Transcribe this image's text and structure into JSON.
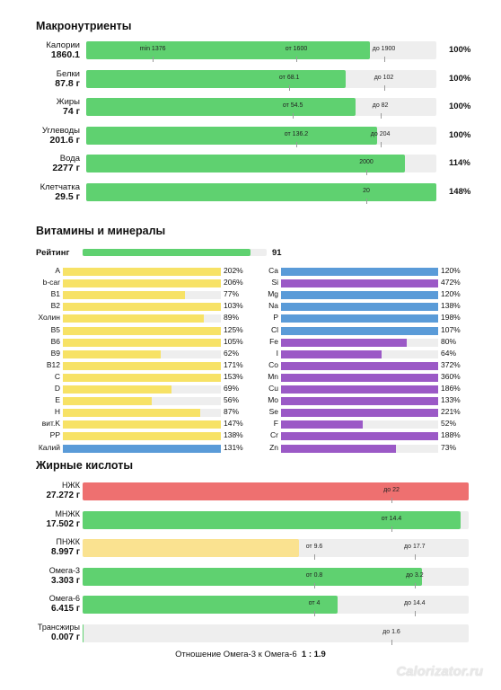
{
  "colors": {
    "green": "#5fd170",
    "yellow": "#f7e266",
    "blue": "#5a9bd8",
    "purple": "#9b59c6",
    "red": "#ee7070",
    "pale_yellow": "#fae290",
    "track": "#eeeeee"
  },
  "sections": {
    "macro": "Макронутриенты",
    "vitamins": "Витамины и минералы",
    "fats": "Жирные кислоты"
  },
  "macros": [
    {
      "name": "Калории",
      "amount": "1860.1",
      "percent": "100%",
      "fill": 0.81,
      "ticks": [
        {
          "label": "min 1376",
          "at": 0.19
        },
        {
          "label": "от 1600",
          "at": 0.6
        },
        {
          "label": "до 1900",
          "at": 0.85
        }
      ]
    },
    {
      "name": "Белки",
      "amount": "87.8 г",
      "percent": "100%",
      "fill": 0.74,
      "ticks": [
        {
          "label": "от 68.1",
          "at": 0.58
        },
        {
          "label": "до 102",
          "at": 0.85
        }
      ]
    },
    {
      "name": "Жиры",
      "amount": "74 г",
      "percent": "100%",
      "fill": 0.77,
      "ticks": [
        {
          "label": "от 54.5",
          "at": 0.59
        },
        {
          "label": "до 82",
          "at": 0.84
        }
      ]
    },
    {
      "name": "Углеводы",
      "amount": "201.6 г",
      "percent": "100%",
      "fill": 0.83,
      "ticks": [
        {
          "label": "от 136.2",
          "at": 0.6
        },
        {
          "label": "до 204",
          "at": 0.84
        }
      ]
    },
    {
      "name": "Вода",
      "amount": "2277 г",
      "percent": "114%",
      "fill": 0.91,
      "ticks": [
        {
          "label": "2000",
          "at": 0.8
        }
      ]
    },
    {
      "name": "Клетчатка",
      "amount": "29.5 г",
      "percent": "148%",
      "fill": 1.0,
      "ticks": [
        {
          "label": "20",
          "at": 0.8
        }
      ]
    }
  ],
  "rating": {
    "label": "Рейтинг",
    "value": "91",
    "fill": 0.91
  },
  "vitamins_left": [
    {
      "name": "A",
      "percent": "202%",
      "value": 202,
      "color": "yellow"
    },
    {
      "name": "b-car",
      "percent": "206%",
      "value": 206,
      "color": "yellow"
    },
    {
      "name": "B1",
      "percent": "77%",
      "value": 77,
      "color": "yellow"
    },
    {
      "name": "B2",
      "percent": "103%",
      "value": 103,
      "color": "yellow"
    },
    {
      "name": "Холин",
      "percent": "89%",
      "value": 89,
      "color": "yellow"
    },
    {
      "name": "B5",
      "percent": "125%",
      "value": 125,
      "color": "yellow"
    },
    {
      "name": "B6",
      "percent": "105%",
      "value": 105,
      "color": "yellow"
    },
    {
      "name": "B9",
      "percent": "62%",
      "value": 62,
      "color": "yellow"
    },
    {
      "name": "B12",
      "percent": "171%",
      "value": 171,
      "color": "yellow"
    },
    {
      "name": "C",
      "percent": "153%",
      "value": 153,
      "color": "yellow"
    },
    {
      "name": "D",
      "percent": "69%",
      "value": 69,
      "color": "yellow"
    },
    {
      "name": "E",
      "percent": "56%",
      "value": 56,
      "color": "yellow"
    },
    {
      "name": "H",
      "percent": "87%",
      "value": 87,
      "color": "yellow"
    },
    {
      "name": "вит.K",
      "percent": "147%",
      "value": 147,
      "color": "yellow"
    },
    {
      "name": "PP",
      "percent": "138%",
      "value": 138,
      "color": "yellow"
    },
    {
      "name": "Калий",
      "percent": "131%",
      "value": 131,
      "color": "blue"
    }
  ],
  "minerals_right": [
    {
      "name": "Ca",
      "percent": "120%",
      "value": 120,
      "color": "blue"
    },
    {
      "name": "Si",
      "percent": "472%",
      "value": 472,
      "color": "purple"
    },
    {
      "name": "Mg",
      "percent": "120%",
      "value": 120,
      "color": "blue"
    },
    {
      "name": "Na",
      "percent": "138%",
      "value": 138,
      "color": "blue"
    },
    {
      "name": "P",
      "percent": "198%",
      "value": 198,
      "color": "blue"
    },
    {
      "name": "Cl",
      "percent": "107%",
      "value": 107,
      "color": "blue"
    },
    {
      "name": "Fe",
      "percent": "80%",
      "value": 80,
      "color": "purple"
    },
    {
      "name": "I",
      "percent": "64%",
      "value": 64,
      "color": "purple"
    },
    {
      "name": "Co",
      "percent": "372%",
      "value": 372,
      "color": "purple"
    },
    {
      "name": "Mn",
      "percent": "360%",
      "value": 360,
      "color": "purple"
    },
    {
      "name": "Cu",
      "percent": "186%",
      "value": 186,
      "color": "purple"
    },
    {
      "name": "Mo",
      "percent": "133%",
      "value": 133,
      "color": "purple"
    },
    {
      "name": "Se",
      "percent": "221%",
      "value": 221,
      "color": "purple"
    },
    {
      "name": "F",
      "percent": "52%",
      "value": 52,
      "color": "purple"
    },
    {
      "name": "Cr",
      "percent": "188%",
      "value": 188,
      "color": "purple"
    },
    {
      "name": "Zn",
      "percent": "73%",
      "value": 73,
      "color": "purple"
    }
  ],
  "fats": [
    {
      "name": "НЖК",
      "amount": "27.272 г",
      "color": "red",
      "fill": 1.0,
      "ticks": [
        {
          "label": "до 22",
          "at": 0.8
        }
      ]
    },
    {
      "name": "МНЖК",
      "amount": "17.502 г",
      "color": "green",
      "fill": 0.98,
      "ticks": [
        {
          "label": "от 14.4",
          "at": 0.8
        }
      ]
    },
    {
      "name": "ПНЖК",
      "amount": "8.997 г",
      "color": "pale_yellow",
      "fill": 0.56,
      "ticks": [
        {
          "label": "от 9.6",
          "at": 0.6
        },
        {
          "label": "до 17.7",
          "at": 0.86
        }
      ]
    },
    {
      "name": "Омега-3",
      "amount": "3.303 г",
      "color": "green",
      "fill": 0.88,
      "ticks": [
        {
          "label": "от 0.8",
          "at": 0.6
        },
        {
          "label": "до 3.2",
          "at": 0.86
        }
      ]
    },
    {
      "name": "Омега-6",
      "amount": "6.415 г",
      "color": "green",
      "fill": 0.66,
      "ticks": [
        {
          "label": "от 4",
          "at": 0.6
        },
        {
          "label": "до 14.4",
          "at": 0.86
        }
      ]
    },
    {
      "name": "Трансжиры",
      "amount": "0.007 г",
      "color": "green",
      "fill": 0.003,
      "ticks": [
        {
          "label": "до 1.6",
          "at": 0.8
        }
      ]
    }
  ],
  "ratio": {
    "label": "Отношение Омега-3 к Омега-6",
    "value": "1 : 1.9"
  },
  "watermark": "Calorizator.ru",
  "chart_data": [
    {
      "type": "bar",
      "title": "Макронутриенты",
      "categories": [
        "Калории",
        "Белки",
        "Жиры",
        "Углеводы",
        "Вода",
        "Клетчатка"
      ],
      "values": [
        1860.1,
        87.8,
        74,
        201.6,
        2277,
        29.5
      ],
      "percent_of_norm": [
        100,
        100,
        100,
        100,
        114,
        148
      ]
    },
    {
      "type": "bar",
      "title": "Витамины и минералы",
      "categories": [
        "A",
        "b-car",
        "B1",
        "B2",
        "Холин",
        "B5",
        "B6",
        "B9",
        "B12",
        "C",
        "D",
        "E",
        "H",
        "вит.K",
        "PP",
        "Калий",
        "Ca",
        "Si",
        "Mg",
        "Na",
        "P",
        "Cl",
        "Fe",
        "I",
        "Co",
        "Mn",
        "Cu",
        "Mo",
        "Se",
        "F",
        "Cr",
        "Zn"
      ],
      "values": [
        202,
        206,
        77,
        103,
        89,
        125,
        105,
        62,
        171,
        153,
        69,
        56,
        87,
        147,
        138,
        131,
        120,
        472,
        120,
        138,
        198,
        107,
        80,
        64,
        372,
        360,
        186,
        133,
        221,
        52,
        188,
        73
      ]
    },
    {
      "type": "bar",
      "title": "Жирные кислоты",
      "categories": [
        "НЖК",
        "МНЖК",
        "ПНЖК",
        "Омега-3",
        "Омега-6",
        "Трансжиры"
      ],
      "values": [
        27.272,
        17.502,
        8.997,
        3.303,
        6.415,
        0.007
      ]
    }
  ]
}
